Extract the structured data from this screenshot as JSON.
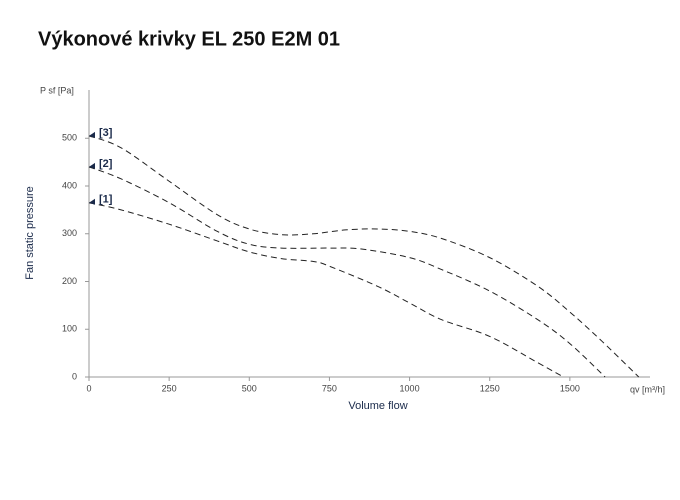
{
  "chart_data": {
    "type": "line",
    "title": "Výkonové krivky EL 250 E2M 01",
    "y_axis_unit": "P sf [Pa]",
    "y_axis_label": "Fan static pressure",
    "x_axis_label": "Volume flow",
    "x_axis_unit": "qv [m³/h]",
    "xlim": [
      0,
      1750
    ],
    "xticks": [
      0,
      250,
      500,
      750,
      1000,
      1250,
      1500
    ],
    "ylim": [
      0,
      600
    ],
    "yticks": [
      0,
      100,
      200,
      300,
      400,
      500
    ],
    "series": [
      {
        "name": "[1]",
        "color": "#222222",
        "x": [
          0,
          100,
          250,
          400,
          500,
          600,
          700,
          750,
          900,
          1000,
          1100,
          1250,
          1400,
          1480
        ],
        "values": [
          365,
          350,
          320,
          285,
          262,
          248,
          242,
          232,
          190,
          155,
          120,
          85,
          30,
          0
        ]
      },
      {
        "name": "[2]",
        "color": "#222222",
        "x": [
          0,
          100,
          250,
          400,
          500,
          600,
          750,
          850,
          1000,
          1100,
          1250,
          1400,
          1500,
          1610
        ],
        "values": [
          440,
          415,
          365,
          305,
          278,
          270,
          270,
          268,
          250,
          225,
          180,
          120,
          70,
          0
        ]
      },
      {
        "name": "[3]",
        "color": "#222222",
        "x": [
          0,
          100,
          250,
          400,
          500,
          600,
          700,
          800,
          900,
          1000,
          1100,
          1250,
          1400,
          1500,
          1600,
          1715
        ],
        "values": [
          505,
          480,
          410,
          340,
          310,
          298,
          300,
          308,
          310,
          305,
          290,
          250,
          190,
          136,
          75,
          0
        ]
      }
    ]
  }
}
